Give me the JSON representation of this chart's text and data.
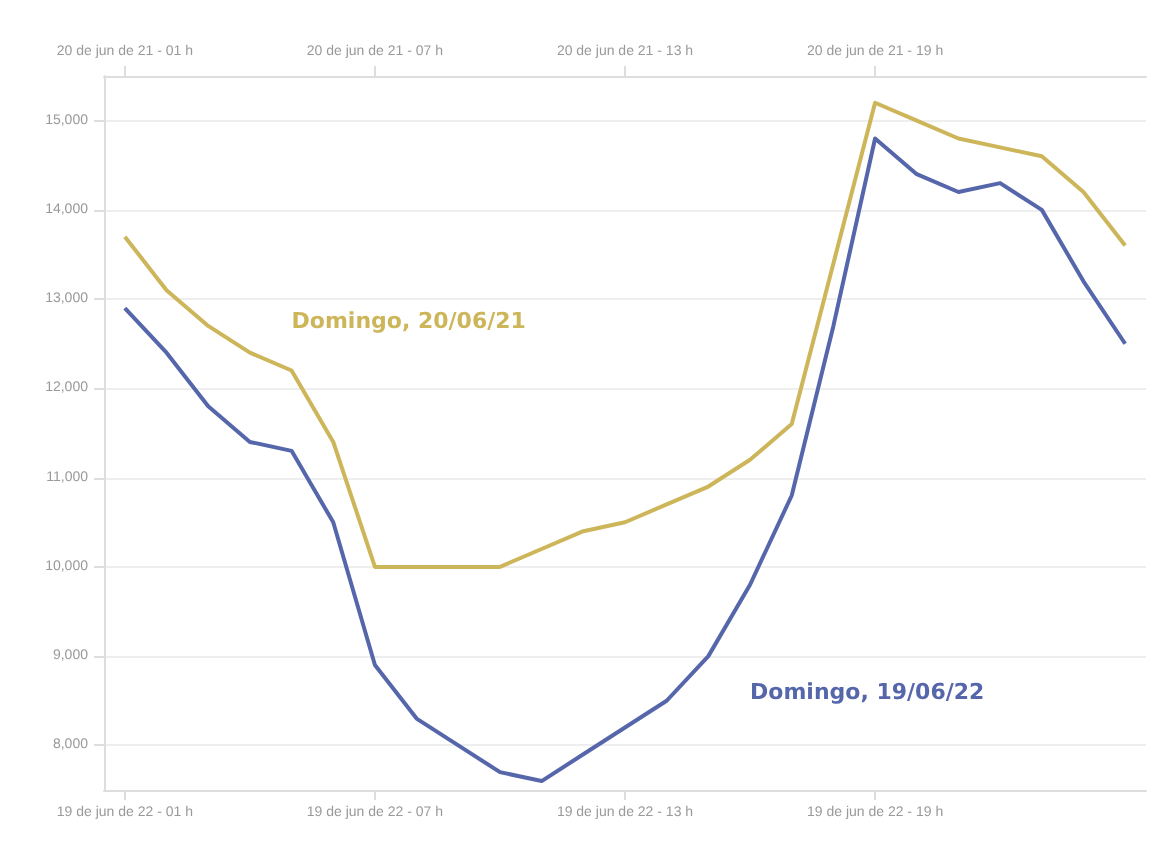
{
  "chart_data": {
    "type": "line",
    "categories": [
      "19 de jun de 22 - 01 h",
      null,
      null,
      null,
      null,
      null,
      "19 de jun de 22 - 07 h",
      null,
      null,
      null,
      null,
      null,
      "19 de jun de 22 - 13 h",
      null,
      null,
      null,
      null,
      null,
      "19 de jun de 22 - 19 h",
      null,
      null,
      null,
      null,
      null,
      null
    ],
    "annotations": [
      "20 de jun de 21 - 01 h",
      "20 de jun de 21 - 07 h",
      "20 de jun de 21 - 13 h",
      "20 de jun de 21 - 19 h"
    ],
    "ylim": [
      7500,
      15500
    ],
    "yticks": [
      {
        "value": 8000,
        "label": "8,000"
      },
      {
        "value": 9000,
        "label": "9,000"
      },
      {
        "value": 10000,
        "label": "10,000"
      },
      {
        "value": 11000,
        "label": "11,000"
      },
      {
        "value": 12000,
        "label": "12,000"
      },
      {
        "value": 13000,
        "label": "13,000"
      },
      {
        "value": 14000,
        "label": "14,000"
      },
      {
        "value": 15000,
        "label": "15,000"
      }
    ],
    "grid": "y",
    "legend": false,
    "marker": "none",
    "line_style": "solid",
    "series": [
      {
        "name": "Domingo, 20/06/21",
        "color": "#cdb55a",
        "values": [
          13700,
          13100,
          12700,
          12400,
          12200,
          11400,
          10000,
          10000,
          10000,
          10000,
          10200,
          10400,
          10500,
          10700,
          10900,
          11200,
          11600,
          13400,
          15200,
          15000,
          14800,
          14700,
          14600,
          14200,
          13600
        ]
      },
      {
        "name": "Domingo, 19/06/22",
        "color": "#5566aa",
        "values": [
          12900,
          12400,
          11800,
          11400,
          11300,
          10500,
          8900,
          8300,
          8000,
          7700,
          7600,
          7900,
          8200,
          8500,
          9000,
          9800,
          10800,
          12700,
          14800,
          14400,
          14200,
          14300,
          14000,
          13200,
          12500
        ]
      }
    ]
  }
}
